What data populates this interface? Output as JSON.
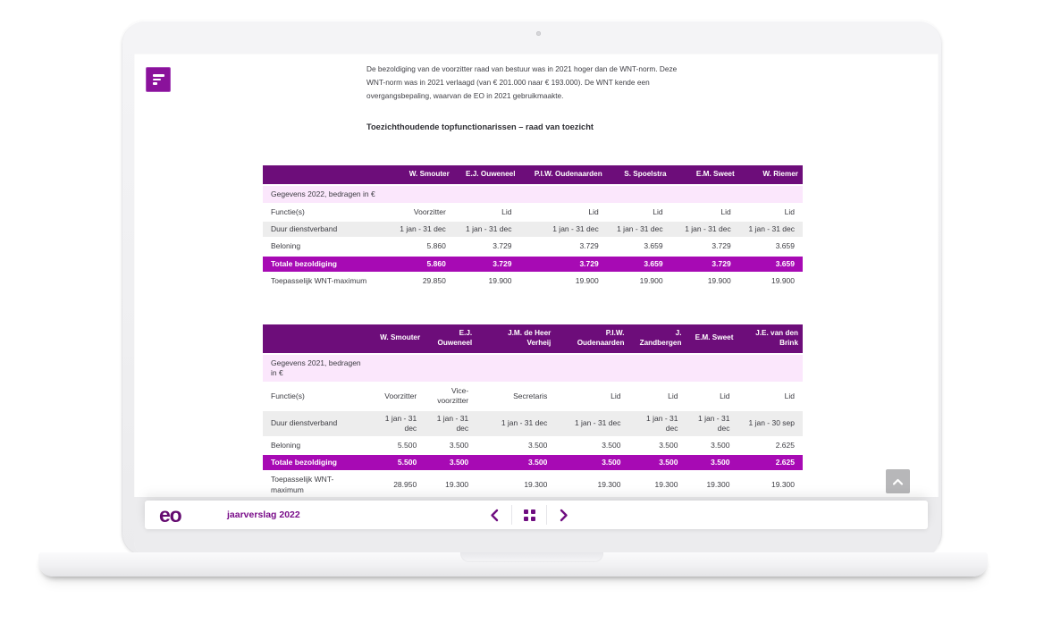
{
  "colors": {
    "purple_dark": "#6D0D7A",
    "purple_bright": "#A70AB4",
    "pink_row": "#FBE7FC",
    "gray_row": "#EDEDED",
    "nav_purple": "#6F0D80"
  },
  "article": {
    "paragraph": "De bezoldiging van de voorzitter raad van bestuur was in 2021 hoger dan de WNT-norm. Deze\nWNT-norm was in 2021 verlaagd (van € 201.000 naar € 193.000). De WNT kende een\novergangsbepaling, waarvan de EO in 2021 gebruikmaakte.",
    "section_heading": "Toezichthoudende topfunctionarissen – raad van toezicht"
  },
  "tables": [
    {
      "group_label": "Gegevens 2022, bedragen in €",
      "columns": [
        "",
        "W. Smouter",
        "E.J. Ouweneel",
        "P.I.W. Oudenaarden",
        "S. Spoelstra",
        "E.M. Sweet",
        "W. Riemer"
      ],
      "rows": [
        {
          "label": "Functie(s)",
          "style": "white",
          "values": [
            "Voorzitter",
            "Lid",
            "Lid",
            "Lid",
            "Lid",
            "Lid"
          ]
        },
        {
          "label": "Duur dienstverband",
          "style": "gray",
          "values": [
            "1 jan - 31 dec",
            "1 jan - 31 dec",
            "1 jan - 31 dec",
            "1 jan - 31 dec",
            "1 jan - 31 dec",
            "1 jan - 31 dec"
          ]
        },
        {
          "label": "Beloning",
          "style": "white",
          "values": [
            "5.860",
            "3.729",
            "3.729",
            "3.659",
            "3.729",
            "3.659"
          ]
        },
        {
          "label": "Totale bezoldiging",
          "style": "highlight",
          "values": [
            "5.860",
            "3.729",
            "3.729",
            "3.659",
            "3.729",
            "3.659"
          ]
        },
        {
          "label": "Toepasselijk WNT-maximum",
          "style": "white",
          "values": [
            "29.850",
            "19.900",
            "19.900",
            "19.900",
            "19.900",
            "19.900"
          ]
        }
      ]
    },
    {
      "group_label": "Gegevens 2021, bedragen\nin €",
      "columns": [
        "",
        "W. Smouter",
        "E.J.\nOuweneel",
        "J.M. de Heer\nVerheij",
        "P.I.W.\nOudenaarden",
        "J.\nZandbergen",
        "E.M. Sweet",
        "J.E. van den\nBrink"
      ],
      "rows": [
        {
          "label": "Functie(s)",
          "style": "white",
          "values": [
            "Voorzitter",
            "Vice-\nvoorzitter",
            "Secretaris",
            "Lid",
            "Lid",
            "Lid",
            "Lid"
          ]
        },
        {
          "label": "Duur dienstverband",
          "style": "gray",
          "values": [
            "1 jan - 31\ndec",
            "1 jan - 31\ndec",
            "1 jan - 31 dec",
            "1 jan - 31 dec",
            "1 jan - 31\ndec",
            "1 jan - 31\ndec",
            "1 jan - 30 sep"
          ]
        },
        {
          "label": "Beloning",
          "style": "white",
          "values": [
            "5.500",
            "3.500",
            "3.500",
            "3.500",
            "3.500",
            "3.500",
            "2.625"
          ]
        },
        {
          "label": "Totale bezoldiging",
          "style": "highlight",
          "values": [
            "5.500",
            "3.500",
            "3.500",
            "3.500",
            "3.500",
            "3.500",
            "2.625"
          ]
        },
        {
          "label": "Toepasselijk WNT-\nmaximum",
          "style": "white",
          "values": [
            "28.950",
            "19.300",
            "19.300",
            "19.300",
            "19.300",
            "19.300",
            "19.300"
          ]
        }
      ]
    }
  ],
  "bottom_bar": {
    "logo_text": "eo",
    "title": "jaarverslag 2022"
  },
  "icons": {
    "menu": "menu-icon",
    "previous": "chevron-left-icon",
    "overview": "grid-icon",
    "next": "chevron-right-icon",
    "scroll_to_top": "chevron-up-icon",
    "camera": "camera-dot"
  }
}
